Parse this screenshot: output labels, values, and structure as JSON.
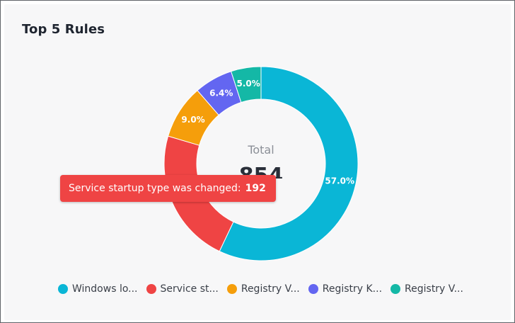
{
  "card": {
    "title": "Top 5 Rules"
  },
  "center": {
    "label": "Total",
    "value": "854"
  },
  "tooltip": {
    "label": "Service startup type was changed:",
    "value": "192"
  },
  "legend": {
    "items": [
      {
        "label": "Windows lo...",
        "color": "#0ab6d6"
      },
      {
        "label": "Service st...",
        "color": "#ef4444"
      },
      {
        "label": "Registry V...",
        "color": "#f59e0b"
      },
      {
        "label": "Registry K...",
        "color": "#6366f1"
      },
      {
        "label": "Registry V...",
        "color": "#14b8a6"
      }
    ]
  },
  "chart_data": {
    "type": "pie",
    "title": "Top 5 Rules",
    "categories": [
      "Windows lo...",
      "Service st...",
      "Registry V...",
      "Registry K...",
      "Registry V..."
    ],
    "values": [
      57.0,
      22.5,
      9.0,
      6.4,
      5.0
    ],
    "labels": [
      "57.0%",
      "",
      "9.0%",
      "6.4%",
      "5.0%"
    ],
    "colors": [
      "#0ab6d6",
      "#ef4444",
      "#f59e0b",
      "#6366f1",
      "#14b8a6"
    ],
    "donut": true,
    "legend": "bottom"
  }
}
